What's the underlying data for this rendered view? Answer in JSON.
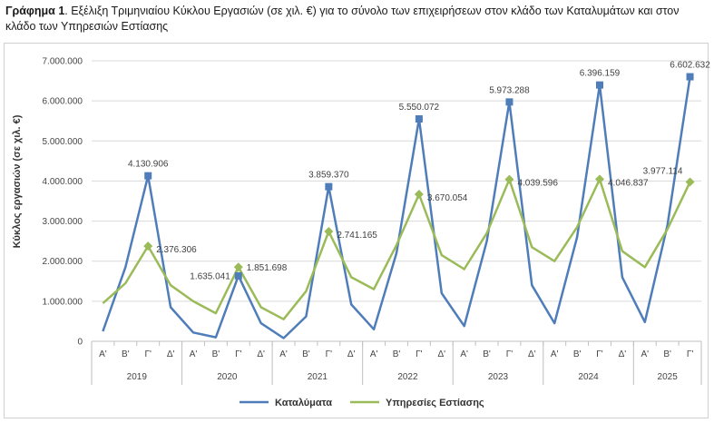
{
  "caption": {
    "prefix": "Γράφημα 1",
    "text": ". Εξέλιξη Τριμηνιαίου Κύκλου Εργασιών (σε χιλ. €) για το σύνολο των επιχειρήσεων στον κλάδο των Καταλυμάτων και στον κλάδο των Υπηρεσιών Εστίασης"
  },
  "colors": {
    "accommodation": "#4f7db9",
    "food": "#9bbb59",
    "grid": "#d9d9d9"
  },
  "chart_data": {
    "type": "line",
    "title": "",
    "xlabel": "",
    "ylabel": "Κύκλος εργασιών (σε χιλ. €)",
    "ylim": [
      0,
      7000000
    ],
    "yticks": [
      "0",
      "1.000.000",
      "2.000.000",
      "3.000.000",
      "4.000.000",
      "5.000.000",
      "6.000.000",
      "7.000.000"
    ],
    "grid": true,
    "legend": "bottom",
    "years": [
      "2019",
      "2020",
      "2021",
      "2022",
      "2023",
      "2024",
      "2025"
    ],
    "quarters": [
      "Α'",
      "Β'",
      "Γ'",
      "Δ'",
      "Α'",
      "Β'",
      "Γ'",
      "Δ'",
      "Α'",
      "Β'",
      "Γ'",
      "Δ'",
      "Α'",
      "Β'",
      "Γ'",
      "Δ'",
      "Α'",
      "Β'",
      "Γ'",
      "Δ'",
      "Α'",
      "Β'",
      "Γ'",
      "Δ'",
      "Α'",
      "Β'",
      "Γ'"
    ],
    "series": [
      {
        "name": "Καταλύματα",
        "values": [
          250000,
          1850000,
          4130906,
          850000,
          220000,
          100000,
          1635041,
          450000,
          80000,
          620000,
          3859370,
          920000,
          300000,
          2200000,
          5550072,
          1200000,
          380000,
          2500000,
          5973288,
          1400000,
          450000,
          2600000,
          6396159,
          1600000,
          480000,
          2900000,
          6602632
        ],
        "labels": [
          "",
          "",
          "4.130.906",
          "",
          "",
          "",
          "1.635.041",
          "",
          "",
          "",
          "3.859.370",
          "",
          "",
          "",
          "5.550.072",
          "",
          "",
          "",
          "5.973.288",
          "",
          "",
          "",
          "6.396.159",
          "",
          "",
          "",
          "6.602.632"
        ]
      },
      {
        "name": "Υπηρεσίες Εστίασης",
        "values": [
          950000,
          1450000,
          2376306,
          1400000,
          1000000,
          700000,
          1851698,
          850000,
          550000,
          1250000,
          2741165,
          1600000,
          1300000,
          2400000,
          3670054,
          2150000,
          1800000,
          2700000,
          4039596,
          2350000,
          2000000,
          2850000,
          4046837,
          2250000,
          1850000,
          2800000,
          3977114
        ],
        "labels": [
          "",
          "",
          "2.376.306",
          "",
          "",
          "",
          "1.851.698",
          "",
          "",
          "",
          "2.741.165",
          "",
          "",
          "",
          "3.670.054",
          "",
          "",
          "",
          "4.039.596",
          "",
          "",
          "",
          "4.046.837",
          "",
          "",
          "",
          "3.977.114"
        ]
      }
    ]
  }
}
